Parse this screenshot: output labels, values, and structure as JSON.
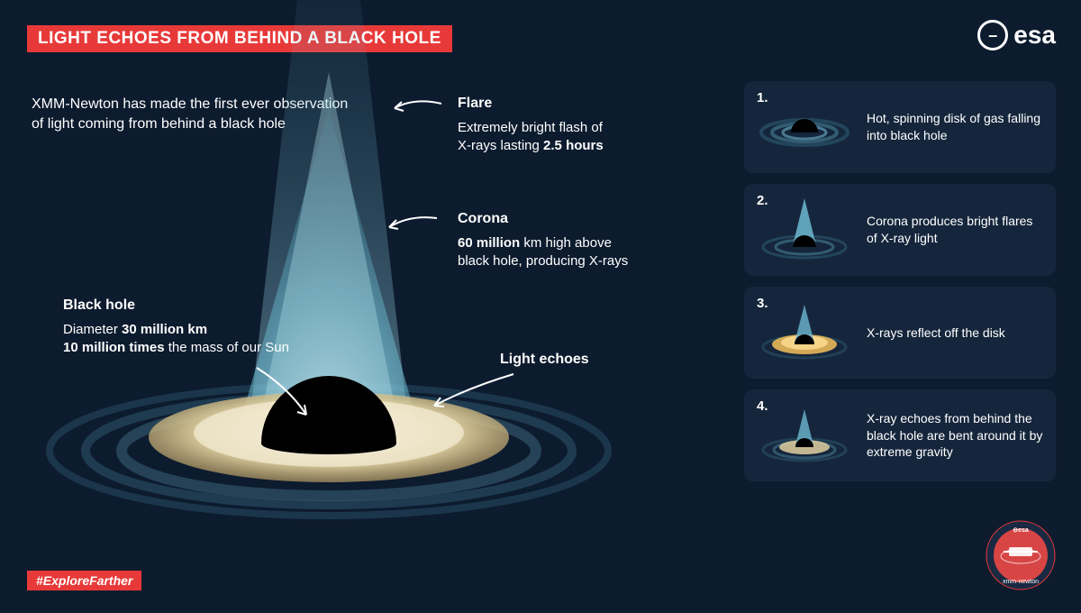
{
  "title": "LIGHT ECHOES FROM BEHIND A BLACK HOLE",
  "intro": "XMM-Newton has made the first ever observation of light coming from behind a black hole",
  "logo": {
    "symbol": "⊖",
    "text": "esa"
  },
  "colors": {
    "bg": "#0d1b2e",
    "panel": "#15263c",
    "accent": "#e83939",
    "corona_light": "#9dd9e8",
    "corona_mid": "#4b9bb8",
    "disk_light": "#f0e4c4",
    "disk_mid": "#d4c090",
    "ring": "#2a4a5c",
    "orange": "#e8b858",
    "black": "#000000"
  },
  "labels": {
    "flare": {
      "title": "Flare",
      "desc": "Extremely bright flash of X-rays lasting <b>2.5 hours</b>"
    },
    "corona": {
      "title": "Corona",
      "desc": "<b>60 million</b> km high above black hole, producing X-rays"
    },
    "blackhole": {
      "title": "Black hole",
      "desc": "Diameter <b>30 million km</b><br><b>10 million times</b> the mass of our Sun"
    },
    "echoes": {
      "title": "Light echoes"
    }
  },
  "steps": [
    {
      "num": "1.",
      "text": "Hot, spinning disk of gas falling into black hole"
    },
    {
      "num": "2.",
      "text": "Corona produces bright flares of X-ray light"
    },
    {
      "num": "3.",
      "text": "X-rays reflect off the disk"
    },
    {
      "num": "4.",
      "text": "X-ray echoes from behind the black hole are bent around it by extreme gravity"
    }
  ],
  "hashtag": "#ExploreFarther",
  "badge": {
    "text": "xmm-newton"
  }
}
